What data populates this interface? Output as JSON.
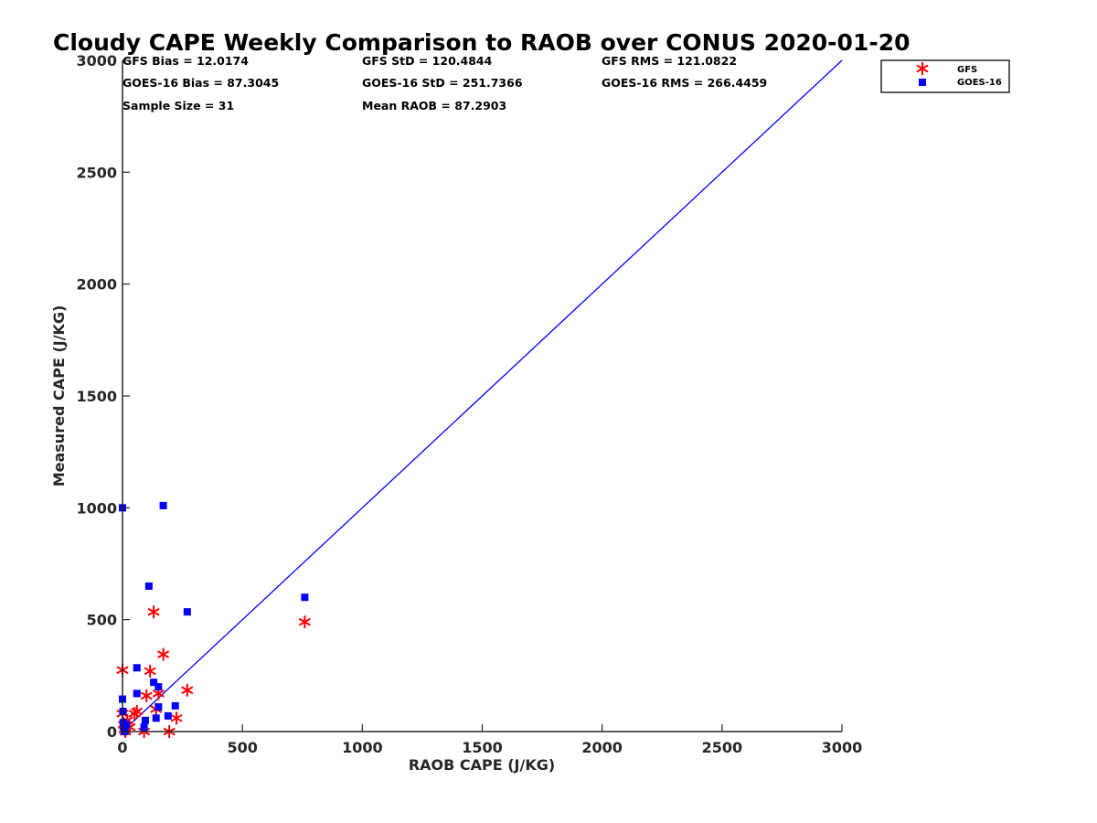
{
  "chart_data": {
    "type": "scatter",
    "title": "Cloudy CAPE Weekly Comparison to RAOB over CONUS 2020-01-20",
    "xlabel": "RAOB CAPE (J/KG)",
    "ylabel": "Measured CAPE (J/KG)",
    "xlim": [
      0,
      3000
    ],
    "ylim": [
      0,
      3000
    ],
    "xticks": [
      0,
      500,
      1000,
      1500,
      2000,
      2500,
      3000
    ],
    "yticks": [
      0,
      500,
      1000,
      1500,
      2000,
      2500,
      3000
    ],
    "grid": false,
    "legend_position": "top-right",
    "stats": [
      [
        "GFS Bias = 12.0174",
        "GFS StD = 120.4844",
        "GFS RMS = 121.0822"
      ],
      [
        "GOES-16 Bias = 87.3045",
        "GOES-16 StD = 251.7366",
        "GOES-16 RMS = 266.4459"
      ],
      [
        "Sample Size = 31",
        "Mean RAOB = 87.2903",
        ""
      ]
    ],
    "reference_line": {
      "x": [
        0,
        3000
      ],
      "y": [
        0,
        3000
      ],
      "color": "#0000ff"
    },
    "series": [
      {
        "name": "GFS",
        "marker": "asterisk",
        "color": "#ff0000",
        "points": [
          [
            0,
            275
          ],
          [
            0,
            80
          ],
          [
            5,
            30
          ],
          [
            8,
            10
          ],
          [
            12,
            0
          ],
          [
            20,
            50
          ],
          [
            30,
            20
          ],
          [
            50,
            80
          ],
          [
            60,
            90
          ],
          [
            90,
            0
          ],
          [
            100,
            160
          ],
          [
            115,
            270
          ],
          [
            130,
            535
          ],
          [
            140,
            100
          ],
          [
            150,
            170
          ],
          [
            170,
            345
          ],
          [
            195,
            0
          ],
          [
            225,
            60
          ],
          [
            270,
            185
          ],
          [
            760,
            490
          ]
        ]
      },
      {
        "name": "GOES-16",
        "marker": "square",
        "color": "#0000ff",
        "points": [
          [
            0,
            1000
          ],
          [
            0,
            145
          ],
          [
            2,
            90
          ],
          [
            3,
            40
          ],
          [
            5,
            20
          ],
          [
            8,
            5
          ],
          [
            10,
            0
          ],
          [
            15,
            30
          ],
          [
            60,
            285
          ],
          [
            60,
            170
          ],
          [
            90,
            20
          ],
          [
            95,
            50
          ],
          [
            110,
            650
          ],
          [
            130,
            220
          ],
          [
            140,
            60
          ],
          [
            150,
            200
          ],
          [
            150,
            110
          ],
          [
            170,
            1010
          ],
          [
            190,
            70
          ],
          [
            220,
            115
          ],
          [
            270,
            535
          ],
          [
            760,
            600
          ]
        ]
      }
    ]
  }
}
